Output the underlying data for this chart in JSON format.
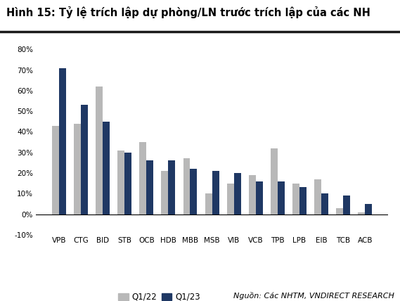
{
  "title": "Hình 15: Tỷ lệ trích lập dự phòng/LN trước trích lập của các NH",
  "categories": [
    "VPB",
    "CTG",
    "BID",
    "STB",
    "OCB",
    "HDB",
    "MBB",
    "MSB",
    "VIB",
    "VCB",
    "TPB",
    "LPB",
    "EIB",
    "TCB",
    "ACB"
  ],
  "q1_22": [
    0.43,
    0.44,
    0.62,
    0.31,
    0.35,
    0.21,
    0.27,
    0.1,
    0.15,
    0.19,
    0.32,
    0.15,
    0.17,
    0.03,
    0.01
  ],
  "q1_23": [
    0.71,
    0.53,
    0.45,
    0.3,
    0.26,
    0.26,
    0.22,
    0.21,
    0.2,
    0.16,
    0.16,
    0.13,
    0.1,
    0.09,
    0.05
  ],
  "color_q122": "#b8b8b8",
  "color_q123": "#1f3864",
  "ylim_min": -0.1,
  "ylim_max": 0.85,
  "yticks": [
    -0.1,
    0.0,
    0.1,
    0.2,
    0.3,
    0.4,
    0.5,
    0.6,
    0.7,
    0.8
  ],
  "ytick_labels": [
    "-10%",
    "0%",
    "10%",
    "20%",
    "30%",
    "40%",
    "50%",
    "60%",
    "70%",
    "80%"
  ],
  "legend_q122": "Q1/22",
  "legend_q123": "Q1/23",
  "source_text": "Nguồn: Các NHTM, VNDIRECT RESEARCH",
  "background_color": "#ffffff",
  "title_fontsize": 10.5,
  "tick_fontsize": 7.5,
  "bar_width": 0.32
}
